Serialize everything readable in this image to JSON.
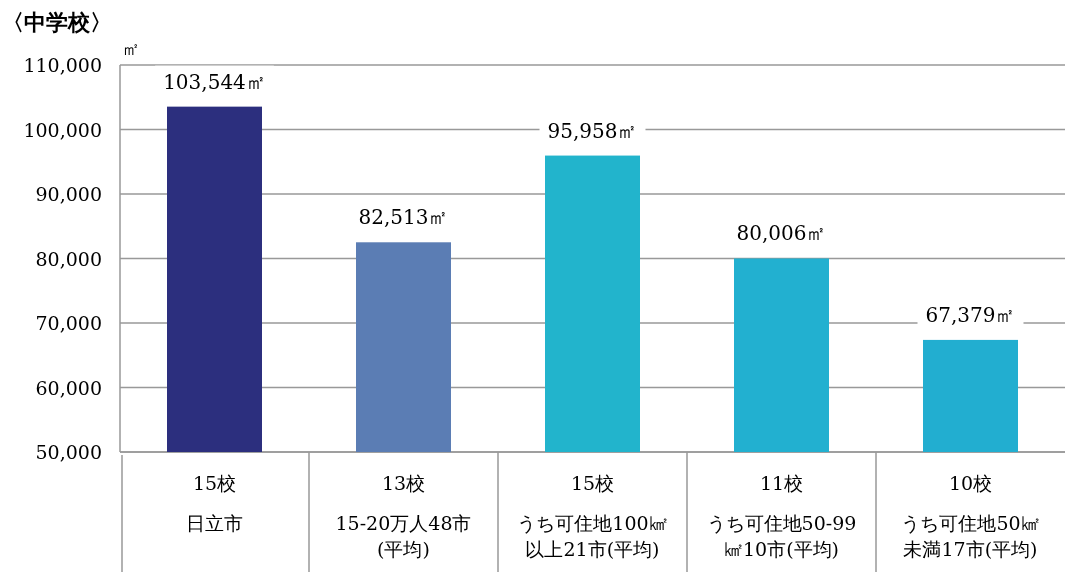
{
  "chart_data": {
    "type": "bar",
    "title": "〈中学校〉",
    "ylabel": "㎡",
    "categories": [
      "15校日立市",
      "13校15-20万人48市\n(平均)",
      "15校うち可住地100㎢以上21市(平均)",
      "11校うち可住地50-99㎢10市(平均)",
      "10校うち可住地50㎢未満17市(平均)"
    ],
    "values": [
      103544,
      82513,
      95958,
      80006,
      67379
    ],
    "colors": [
      "#2c2f7e",
      "#5b7db4",
      "#22b4cc",
      "#22b0d0",
      "#22aed0"
    ],
    "value_labels": [
      "103,544㎡",
      "82,513㎡",
      "95,958㎡",
      "80,006㎡",
      "67,379㎡"
    ],
    "ylim": [
      50000,
      110000
    ],
    "yticks": [
      {
        "value": 50000,
        "label": "50,000"
      },
      {
        "value": 60000,
        "label": "60,000"
      },
      {
        "value": 70000,
        "label": "70,000"
      },
      {
        "value": 80000,
        "label": "80,000"
      },
      {
        "value": 90000,
        "label": "90,000"
      },
      {
        "value": 100000,
        "label": "100,000"
      },
      {
        "value": 110000,
        "label": "110,000"
      }
    ],
    "grid": "y"
  }
}
